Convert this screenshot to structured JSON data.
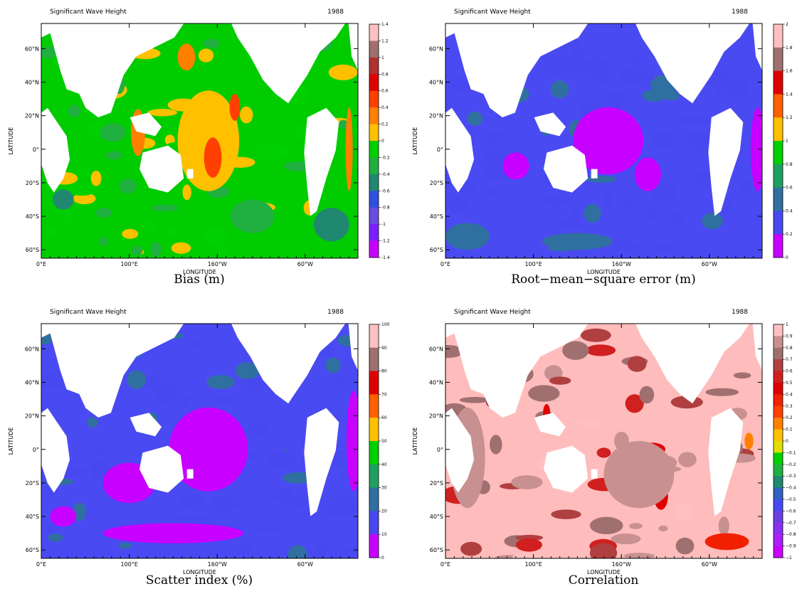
{
  "figure": {
    "panels": [
      {
        "id": "bias",
        "header_left": "Significant Wave Height",
        "header_right": "1988",
        "caption": "Bias (m)",
        "xlabel": "LONGITUDE",
        "ylabel": "LATITUDE",
        "xticks": [
          "0°E",
          "100°E",
          "160°W",
          "60°W"
        ],
        "yticks": [
          "60°N",
          "40°N",
          "20°N",
          "0°",
          "20°S",
          "40°S",
          "60°S"
        ],
        "colorbar": {
          "labels": [
            "1.4",
            "1.2",
            "1",
            "0.8",
            "0.6",
            "0.4",
            "0.2",
            "0",
            "-0.2",
            "-0.4",
            "-0.6",
            "-0.8",
            "-1",
            "-1.2",
            "-1.4"
          ],
          "colors": [
            "#ffc0c0",
            "#a07070",
            "#b03030",
            "#e00000",
            "#ff4000",
            "#ff8000",
            "#ffc000",
            "#00d000",
            "#20b040",
            "#208870",
            "#3050e0",
            "#6a4ce0",
            "#7a20ff",
            "#c800ff"
          ]
        }
      },
      {
        "id": "rmse",
        "header_left": "Significant Wave Height",
        "header_right": "1988",
        "caption": "Root−mean−square error (m)",
        "xlabel": "LONGITUDE",
        "ylabel": "LATITUDE",
        "xticks": [
          "0°E",
          "100°E",
          "160°W",
          "60°W"
        ],
        "yticks": [
          "60°N",
          "40°N",
          "20°N",
          "0°",
          "20°S",
          "40°S",
          "60°S"
        ],
        "colorbar": {
          "labels": [
            "2",
            "1.8",
            "1.6",
            "1.4",
            "1.2",
            "1",
            "0.8",
            "0.6",
            "0.4",
            "0.2",
            "0"
          ],
          "colors": [
            "#ffc0c0",
            "#a07070",
            "#e00000",
            "#ff6000",
            "#ffc000",
            "#00d000",
            "#20a060",
            "#3070a0",
            "#4848f0",
            "#c800ff"
          ]
        }
      },
      {
        "id": "scatter",
        "header_left": "Significant Wave Height",
        "header_right": "1988",
        "caption": "Scatter index (%)",
        "xlabel": "LONGITUDE",
        "ylabel": "LATITUDE",
        "xticks": [
          "0°E",
          "100°E",
          "160°W",
          "60°W"
        ],
        "yticks": [
          "60°N",
          "40°N",
          "20°N",
          "0°",
          "20°S",
          "40°S",
          "60°S"
        ],
        "colorbar": {
          "labels": [
            "100",
            "90",
            "80",
            "70",
            "60",
            "50",
            "40",
            "30",
            "20",
            "10",
            "0"
          ],
          "colors": [
            "#ffc0c0",
            "#a07070",
            "#e00000",
            "#ff6000",
            "#ffc000",
            "#00d000",
            "#20a060",
            "#3070a0",
            "#4848f0",
            "#c800ff"
          ]
        }
      },
      {
        "id": "corr",
        "header_left": "Significant Wave Height",
        "header_right": "1988",
        "caption": "Correlation",
        "xlabel": "LONGITUDE",
        "ylabel": "LATITUDE",
        "xticks": [
          "0°E",
          "100°E",
          "160°W",
          "60°W"
        ],
        "yticks": [
          "60°N",
          "40°N",
          "20°N",
          "0°",
          "20°S",
          "40°S",
          "60°S"
        ],
        "colorbar": {
          "labels": [
            "1",
            "0.9",
            "0.8",
            "0.7",
            "0.6",
            "0.5",
            "0.4",
            "0.3",
            "0.2",
            "0.1",
            "0",
            "−0.1",
            "−0.2",
            "−0.3",
            "−0.4",
            "−0.5",
            "−0.6",
            "−0.7",
            "−0.8",
            "−0.9",
            "−1"
          ],
          "colors": [
            "#ffc0c0",
            "#c89090",
            "#a07070",
            "#b04040",
            "#d02020",
            "#e00000",
            "#f02000",
            "#ff4000",
            "#ff8000",
            "#ffc000",
            "#e0e000",
            "#00d000",
            "#20b040",
            "#208870",
            "#3060c0",
            "#4848f0",
            "#6a40e0",
            "#8a30f0",
            "#a820f8",
            "#c800ff"
          ]
        }
      }
    ]
  },
  "chart_data": [
    {
      "type": "heatmap",
      "title": "Bias (m)",
      "subtitle": "Significant Wave Height 1988",
      "xlabel": "LONGITUDE",
      "ylabel": "LATITUDE",
      "x_ticks": [
        "0°E",
        "100°E",
        "160°W",
        "60°W"
      ],
      "y_ticks": [
        "60°N",
        "40°N",
        "20°N",
        "0°",
        "20°S",
        "40°S",
        "60°S"
      ],
      "color_scale": [
        -1.4,
        1.4
      ],
      "background_field": "green",
      "features": [
        {
          "lon": 110,
          "lat": 10,
          "rx": 8,
          "ry": 14,
          "value": 0.3
        },
        {
          "lon": 190,
          "lat": 5,
          "rx": 35,
          "ry": 30,
          "value": 0.15
        },
        {
          "lon": 195,
          "lat": -5,
          "rx": 10,
          "ry": 12,
          "value": 0.4
        },
        {
          "lon": 220,
          "lat": 25,
          "rx": 6,
          "ry": 8,
          "value": 0.5
        },
        {
          "lon": 165,
          "lat": 55,
          "rx": 10,
          "ry": 8,
          "value": 0.2
        },
        {
          "lon": 350,
          "lat": 0,
          "rx": 4,
          "ry": 25,
          "value": 0.2
        },
        {
          "lon": 25,
          "lat": -30,
          "rx": 12,
          "ry": 6,
          "value": -0.5
        },
        {
          "lon": 330,
          "lat": -45,
          "rx": 20,
          "ry": 10,
          "value": -0.5
        },
        {
          "lon": 240,
          "lat": -40,
          "rx": 25,
          "ry": 10,
          "value": -0.35
        }
      ]
    },
    {
      "type": "heatmap",
      "title": "Root−mean−square error (m)",
      "subtitle": "Significant Wave Height 1988",
      "xlabel": "LONGITUDE",
      "ylabel": "LATITUDE",
      "x_ticks": [
        "0°E",
        "100°E",
        "160°W",
        "60°W"
      ],
      "y_ticks": [
        "60°N",
        "40°N",
        "20°N",
        "0°",
        "20°S",
        "40°S",
        "60°S"
      ],
      "color_scale": [
        0,
        2
      ],
      "background_field": "blue",
      "features": [
        {
          "lon": 185,
          "lat": 5,
          "rx": 40,
          "ry": 20,
          "value": 0.1
        },
        {
          "lon": 80,
          "lat": -10,
          "rx": 15,
          "ry": 8,
          "value": 0.1
        },
        {
          "lon": 355,
          "lat": 0,
          "rx": 8,
          "ry": 25,
          "value": 0.1
        },
        {
          "lon": 230,
          "lat": -15,
          "rx": 15,
          "ry": 10,
          "value": 0.1
        },
        {
          "lon": 25,
          "lat": -52,
          "rx": 25,
          "ry": 8,
          "value": 0.5
        },
        {
          "lon": 150,
          "lat": -55,
          "rx": 40,
          "ry": 5,
          "value": 0.5
        }
      ]
    },
    {
      "type": "heatmap",
      "title": "Scatter index (%)",
      "subtitle": "Significant Wave Height 1988",
      "xlabel": "LONGITUDE",
      "ylabel": "LATITUDE",
      "x_ticks": [
        "0°E",
        "100°E",
        "160°W",
        "60°W"
      ],
      "y_ticks": [
        "60°N",
        "40°N",
        "20°N",
        "0°",
        "20°S",
        "40°S",
        "60°S"
      ],
      "color_scale": [
        0,
        100
      ],
      "background_field": "blue",
      "features": [
        {
          "lon": 190,
          "lat": 0,
          "rx": 45,
          "ry": 25,
          "value": 5
        },
        {
          "lon": 100,
          "lat": -20,
          "rx": 30,
          "ry": 12,
          "value": 5
        },
        {
          "lon": 150,
          "lat": -50,
          "rx": 80,
          "ry": 6,
          "value": 5
        },
        {
          "lon": 355,
          "lat": 5,
          "rx": 8,
          "ry": 30,
          "value": 5
        },
        {
          "lon": 25,
          "lat": -40,
          "rx": 15,
          "ry": 6,
          "value": 5
        },
        {
          "lon": 290,
          "lat": 55,
          "rx": 8,
          "ry": 6,
          "value": 25
        }
      ]
    },
    {
      "type": "heatmap",
      "title": "Correlation",
      "subtitle": "Significant Wave Height 1988",
      "xlabel": "LONGITUDE",
      "ylabel": "LATITUDE",
      "x_ticks": [
        "0°E",
        "100°E",
        "160°W",
        "60°W"
      ],
      "y_ticks": [
        "60°N",
        "40°N",
        "20°N",
        "0°",
        "20°S",
        "40°S",
        "60°S"
      ],
      "color_scale": [
        -1,
        1
      ],
      "background_field": "pink",
      "features": [
        {
          "lon": 115,
          "lat": 22,
          "rx": 4,
          "ry": 5,
          "value": 0.4
        },
        {
          "lon": 180,
          "lat": -2,
          "rx": 8,
          "ry": 3,
          "value": 0.5
        },
        {
          "lon": 235,
          "lat": 0,
          "rx": 15,
          "ry": 4,
          "value": 0.4
        },
        {
          "lon": 245,
          "lat": -28,
          "rx": 8,
          "ry": 8,
          "value": 0.4
        },
        {
          "lon": 345,
          "lat": 5,
          "rx": 5,
          "ry": 5,
          "value": 0.1
        },
        {
          "lon": 320,
          "lat": -55,
          "rx": 25,
          "ry": 5,
          "value": 0.3
        },
        {
          "lon": 95,
          "lat": -57,
          "rx": 15,
          "ry": 4,
          "value": 0.5
        },
        {
          "lon": 220,
          "lat": -15,
          "rx": 40,
          "ry": 20,
          "value": 0.8
        },
        {
          "lon": 25,
          "lat": -5,
          "rx": 20,
          "ry": 30,
          "value": 0.8
        }
      ]
    }
  ]
}
